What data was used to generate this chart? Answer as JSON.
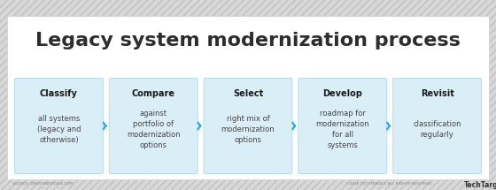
{
  "title": "Legacy system modernization process",
  "title_fontsize": 16,
  "title_color": "#2d2d2d",
  "background_color": "#d8d8d8",
  "panel_color": "#ffffff",
  "box_bg_color": "#daeef8",
  "box_border_color": "#b8dced",
  "arrow_color": "#29abe2",
  "text_color": "#444444",
  "bold_color": "#1a1a1a",
  "steps": [
    {
      "bold": "Classify",
      "text": "all systems\n(legacy and\notherwise)"
    },
    {
      "bold": "Compare",
      "text": "against\nportfolio of\nmodernization\noptions"
    },
    {
      "bold": "Select",
      "text": "right mix of\nmodernization\noptions"
    },
    {
      "bold": "Develop",
      "text": "roadmap for\nmodernization\nfor all\nsystems"
    },
    {
      "bold": "Revisit",
      "text": "classification\nregularly"
    }
  ],
  "footer_left": "SOURCE: WIKISTRATEGIES.COM",
  "footer_right": "©2018 TECHTARGET. ALL RIGHTS RESERVED.",
  "footer_brand": "TechTarget"
}
